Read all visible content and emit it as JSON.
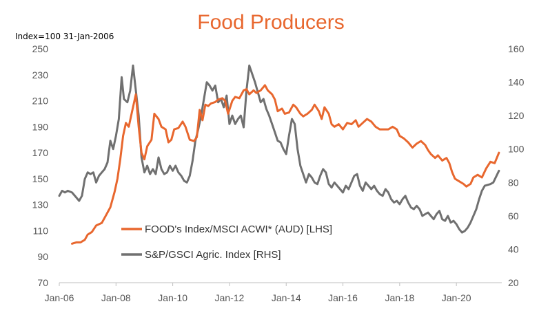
{
  "chart_data": {
    "type": "line",
    "title": "Food Producers",
    "index_note": "Index=100 31-Jan-2006",
    "x_ticks": [
      "Jan-06",
      "Jan-08",
      "Jan-10",
      "Jan-12",
      "Jan-14",
      "Jan-16",
      "Jan-18",
      "Jan-20"
    ],
    "y_left": {
      "ticks": [
        "70",
        "90",
        "110",
        "130",
        "150",
        "170",
        "190",
        "210",
        "230",
        "250"
      ],
      "range": [
        70,
        250
      ]
    },
    "y_right": {
      "ticks": [
        "20",
        "40",
        "60",
        "80",
        "100",
        "120",
        "140",
        "160"
      ],
      "range": [
        20,
        160
      ]
    },
    "x_range": [
      2006.0,
      2021.6
    ],
    "legend": [
      {
        "label": "FOOD's Index/MSCI ACWI* (AUD) [LHS]",
        "color": "#e8672e"
      },
      {
        "label": "S&P/GSCI Agric. Index [RHS]",
        "color": "#707070"
      }
    ],
    "series": [
      {
        "name": "FOOD's Index/MSCI ACWI* (AUD) [LHS]",
        "axis": "left",
        "color": "#e8672e",
        "points": [
          [
            2006.45,
            100
          ],
          [
            2006.6,
            101
          ],
          [
            2006.75,
            101
          ],
          [
            2006.9,
            103
          ],
          [
            2007.0,
            107
          ],
          [
            2007.15,
            109
          ],
          [
            2007.3,
            114
          ],
          [
            2007.5,
            116
          ],
          [
            2007.65,
            122
          ],
          [
            2007.8,
            128
          ],
          [
            2007.95,
            140
          ],
          [
            2008.05,
            150
          ],
          [
            2008.15,
            165
          ],
          [
            2008.25,
            183
          ],
          [
            2008.35,
            193
          ],
          [
            2008.45,
            190
          ],
          [
            2008.55,
            200
          ],
          [
            2008.7,
            215
          ],
          [
            2008.8,
            190
          ],
          [
            2008.9,
            170
          ],
          [
            2009.0,
            165
          ],
          [
            2009.1,
            175
          ],
          [
            2009.25,
            180
          ],
          [
            2009.35,
            200
          ],
          [
            2009.5,
            196
          ],
          [
            2009.6,
            190
          ],
          [
            2009.75,
            188
          ],
          [
            2009.85,
            178
          ],
          [
            2009.95,
            180
          ],
          [
            2010.05,
            188
          ],
          [
            2010.2,
            189
          ],
          [
            2010.35,
            194
          ],
          [
            2010.45,
            190
          ],
          [
            2010.6,
            180
          ],
          [
            2010.75,
            179
          ],
          [
            2010.85,
            182
          ],
          [
            2010.95,
            203
          ],
          [
            2011.05,
            195
          ],
          [
            2011.15,
            207
          ],
          [
            2011.25,
            206
          ],
          [
            2011.35,
            208
          ],
          [
            2011.5,
            209
          ],
          [
            2011.6,
            211
          ],
          [
            2011.75,
            212
          ],
          [
            2011.85,
            210
          ],
          [
            2011.95,
            200
          ],
          [
            2012.1,
            210
          ],
          [
            2012.2,
            213
          ],
          [
            2012.35,
            212
          ],
          [
            2012.5,
            218
          ],
          [
            2012.6,
            219
          ],
          [
            2012.7,
            215
          ],
          [
            2012.85,
            218
          ],
          [
            2012.95,
            216
          ],
          [
            2013.1,
            218
          ],
          [
            2013.25,
            222
          ],
          [
            2013.35,
            218
          ],
          [
            2013.5,
            215
          ],
          [
            2013.6,
            211
          ],
          [
            2013.7,
            202
          ],
          [
            2013.85,
            204
          ],
          [
            2013.95,
            200
          ],
          [
            2014.1,
            201
          ],
          [
            2014.25,
            207
          ],
          [
            2014.35,
            205
          ],
          [
            2014.5,
            200
          ],
          [
            2014.6,
            198
          ],
          [
            2014.75,
            200
          ],
          [
            2014.9,
            203
          ],
          [
            2015.0,
            207
          ],
          [
            2015.15,
            202
          ],
          [
            2015.25,
            196
          ],
          [
            2015.35,
            205
          ],
          [
            2015.5,
            200
          ],
          [
            2015.6,
            192
          ],
          [
            2015.7,
            190
          ],
          [
            2015.85,
            192
          ],
          [
            2016.0,
            188
          ],
          [
            2016.15,
            193
          ],
          [
            2016.3,
            192
          ],
          [
            2016.45,
            195
          ],
          [
            2016.55,
            190
          ],
          [
            2016.7,
            193
          ],
          [
            2016.85,
            196
          ],
          [
            2017.0,
            194
          ],
          [
            2017.15,
            190
          ],
          [
            2017.3,
            188
          ],
          [
            2017.45,
            188
          ],
          [
            2017.6,
            188
          ],
          [
            2017.75,
            190
          ],
          [
            2017.9,
            188
          ],
          [
            2018.0,
            183
          ],
          [
            2018.15,
            181
          ],
          [
            2018.3,
            178
          ],
          [
            2018.45,
            174
          ],
          [
            2018.6,
            177
          ],
          [
            2018.75,
            179
          ],
          [
            2018.9,
            176
          ],
          [
            2019.0,
            172
          ],
          [
            2019.1,
            169
          ],
          [
            2019.25,
            166
          ],
          [
            2019.35,
            168
          ],
          [
            2019.5,
            164
          ],
          [
            2019.65,
            166
          ],
          [
            2019.75,
            162
          ],
          [
            2019.85,
            155
          ],
          [
            2019.95,
            150
          ],
          [
            2020.1,
            148
          ],
          [
            2020.25,
            146
          ],
          [
            2020.35,
            144
          ],
          [
            2020.5,
            146
          ],
          [
            2020.6,
            151
          ],
          [
            2020.75,
            153
          ],
          [
            2020.9,
            151
          ],
          [
            2021.05,
            158
          ],
          [
            2021.2,
            163
          ],
          [
            2021.35,
            162
          ],
          [
            2021.5,
            170
          ]
        ]
      },
      {
        "name": "S&P/GSCI Agric. Index [RHS]",
        "axis": "right",
        "color": "#707070",
        "points": [
          [
            2006.0,
            72
          ],
          [
            2006.1,
            75
          ],
          [
            2006.2,
            74
          ],
          [
            2006.3,
            75
          ],
          [
            2006.45,
            74
          ],
          [
            2006.6,
            71
          ],
          [
            2006.7,
            69
          ],
          [
            2006.8,
            72
          ],
          [
            2006.9,
            82
          ],
          [
            2007.0,
            86
          ],
          [
            2007.1,
            85
          ],
          [
            2007.2,
            86
          ],
          [
            2007.3,
            80
          ],
          [
            2007.4,
            84
          ],
          [
            2007.5,
            86
          ],
          [
            2007.6,
            88
          ],
          [
            2007.7,
            92
          ],
          [
            2007.8,
            105
          ],
          [
            2007.9,
            100
          ],
          [
            2008.0,
            108
          ],
          [
            2008.1,
            118
          ],
          [
            2008.2,
            143
          ],
          [
            2008.28,
            130
          ],
          [
            2008.4,
            128
          ],
          [
            2008.5,
            135
          ],
          [
            2008.6,
            150
          ],
          [
            2008.7,
            135
          ],
          [
            2008.8,
            120
          ],
          [
            2008.9,
            95
          ],
          [
            2009.0,
            86
          ],
          [
            2009.1,
            90
          ],
          [
            2009.2,
            85
          ],
          [
            2009.3,
            88
          ],
          [
            2009.4,
            85
          ],
          [
            2009.5,
            95
          ],
          [
            2009.6,
            88
          ],
          [
            2009.7,
            85
          ],
          [
            2009.8,
            86
          ],
          [
            2009.9,
            90
          ],
          [
            2010.0,
            87
          ],
          [
            2010.1,
            90
          ],
          [
            2010.2,
            86
          ],
          [
            2010.3,
            84
          ],
          [
            2010.4,
            81
          ],
          [
            2010.5,
            80
          ],
          [
            2010.6,
            84
          ],
          [
            2010.7,
            93
          ],
          [
            2010.8,
            105
          ],
          [
            2010.9,
            112
          ],
          [
            2011.0,
            120
          ],
          [
            2011.1,
            130
          ],
          [
            2011.2,
            140
          ],
          [
            2011.3,
            138
          ],
          [
            2011.4,
            135
          ],
          [
            2011.5,
            138
          ],
          [
            2011.6,
            128
          ],
          [
            2011.7,
            130
          ],
          [
            2011.8,
            125
          ],
          [
            2011.9,
            132
          ],
          [
            2012.0,
            115
          ],
          [
            2012.1,
            120
          ],
          [
            2012.2,
            115
          ],
          [
            2012.3,
            118
          ],
          [
            2012.4,
            120
          ],
          [
            2012.5,
            113
          ],
          [
            2012.6,
            135
          ],
          [
            2012.7,
            150
          ],
          [
            2012.8,
            145
          ],
          [
            2012.9,
            140
          ],
          [
            2013.0,
            134
          ],
          [
            2013.1,
            128
          ],
          [
            2013.2,
            130
          ],
          [
            2013.3,
            124
          ],
          [
            2013.4,
            120
          ],
          [
            2013.5,
            115
          ],
          [
            2013.6,
            110
          ],
          [
            2013.7,
            105
          ],
          [
            2013.8,
            104
          ],
          [
            2013.9,
            100
          ],
          [
            2014.0,
            97
          ],
          [
            2014.1,
            108
          ],
          [
            2014.2,
            118
          ],
          [
            2014.3,
            115
          ],
          [
            2014.4,
            100
          ],
          [
            2014.5,
            90
          ],
          [
            2014.6,
            85
          ],
          [
            2014.7,
            80
          ],
          [
            2014.8,
            85
          ],
          [
            2014.9,
            83
          ],
          [
            2015.0,
            80
          ],
          [
            2015.1,
            79
          ],
          [
            2015.2,
            84
          ],
          [
            2015.3,
            88
          ],
          [
            2015.4,
            86
          ],
          [
            2015.5,
            79
          ],
          [
            2015.6,
            77
          ],
          [
            2015.7,
            80
          ],
          [
            2015.8,
            78
          ],
          [
            2015.9,
            76
          ],
          [
            2016.0,
            74
          ],
          [
            2016.1,
            78
          ],
          [
            2016.2,
            76
          ],
          [
            2016.3,
            80
          ],
          [
            2016.4,
            84
          ],
          [
            2016.5,
            85
          ],
          [
            2016.6,
            78
          ],
          [
            2016.7,
            75
          ],
          [
            2016.8,
            80
          ],
          [
            2016.9,
            78
          ],
          [
            2017.0,
            76
          ],
          [
            2017.1,
            78
          ],
          [
            2017.2,
            75
          ],
          [
            2017.3,
            73
          ],
          [
            2017.4,
            72
          ],
          [
            2017.5,
            76
          ],
          [
            2017.6,
            74
          ],
          [
            2017.7,
            70
          ],
          [
            2017.8,
            68
          ],
          [
            2017.9,
            69
          ],
          [
            2018.0,
            67
          ],
          [
            2018.1,
            70
          ],
          [
            2018.2,
            72
          ],
          [
            2018.3,
            68
          ],
          [
            2018.4,
            65
          ],
          [
            2018.5,
            64
          ],
          [
            2018.6,
            66
          ],
          [
            2018.7,
            64
          ],
          [
            2018.8,
            60
          ],
          [
            2018.9,
            61
          ],
          [
            2019.0,
            62
          ],
          [
            2019.1,
            60
          ],
          [
            2019.2,
            58
          ],
          [
            2019.3,
            61
          ],
          [
            2019.4,
            63
          ],
          [
            2019.5,
            58
          ],
          [
            2019.6,
            57
          ],
          [
            2019.7,
            60
          ],
          [
            2019.8,
            56
          ],
          [
            2019.9,
            57
          ],
          [
            2020.0,
            55
          ],
          [
            2020.1,
            52
          ],
          [
            2020.2,
            50
          ],
          [
            2020.3,
            51
          ],
          [
            2020.4,
            53
          ],
          [
            2020.5,
            56
          ],
          [
            2020.6,
            60
          ],
          [
            2020.7,
            64
          ],
          [
            2020.8,
            70
          ],
          [
            2020.9,
            75
          ],
          [
            2021.0,
            78
          ],
          [
            2021.2,
            79
          ],
          [
            2021.3,
            80
          ],
          [
            2021.5,
            87
          ]
        ]
      }
    ]
  }
}
